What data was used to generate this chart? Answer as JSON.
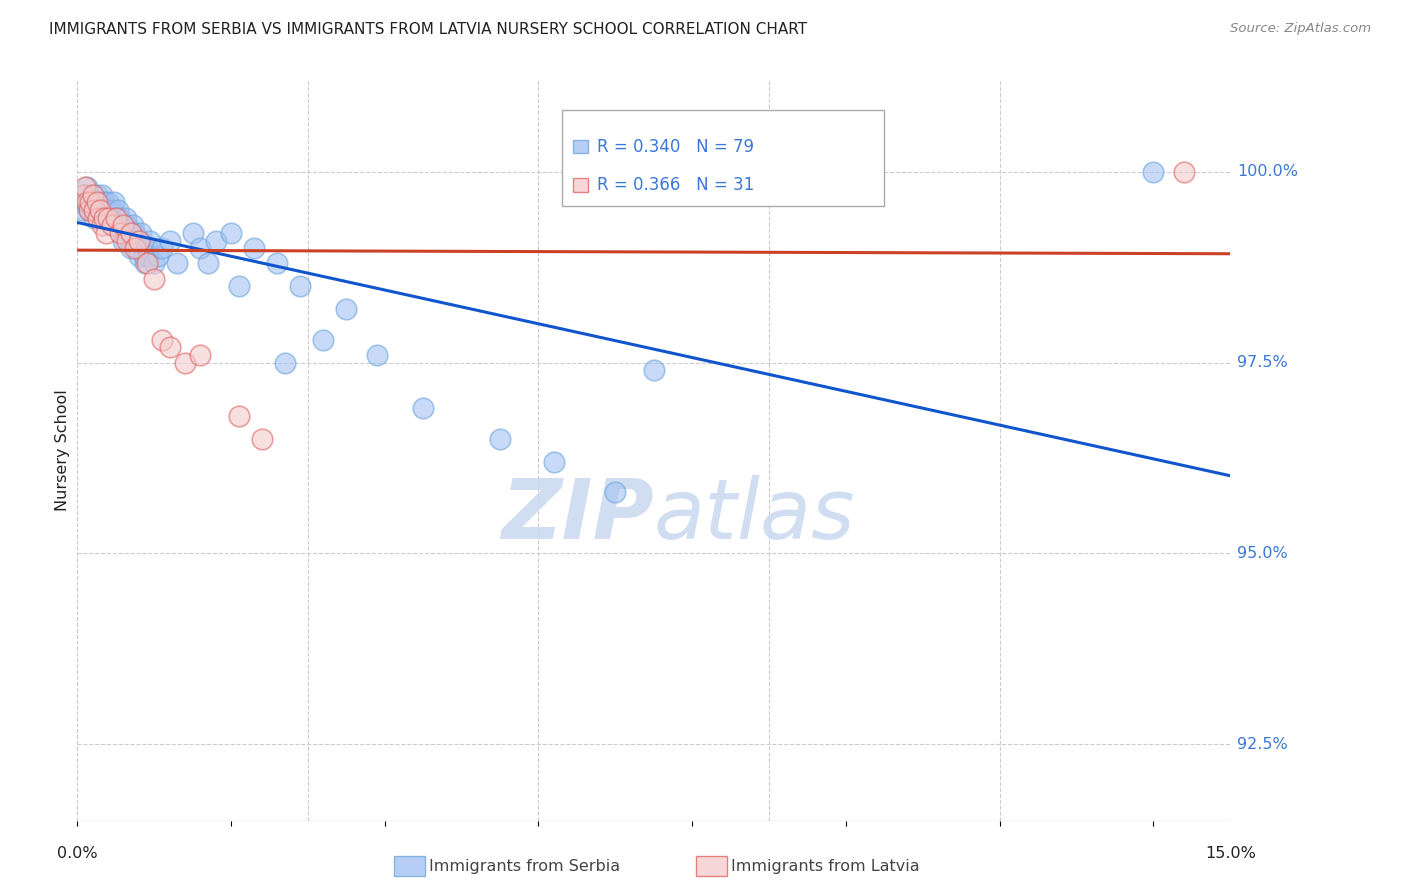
{
  "title": "IMMIGRANTS FROM SERBIA VS IMMIGRANTS FROM LATVIA NURSERY SCHOOL CORRELATION CHART",
  "source": "Source: ZipAtlas.com",
  "ylabel": "Nursery School",
  "xlim": [
    0.0,
    15.0
  ],
  "ylim": [
    91.5,
    101.2
  ],
  "ytick_positions": [
    92.5,
    95.0,
    97.5,
    100.0
  ],
  "ytick_labels": [
    "92.5%",
    "95.0%",
    "97.5%",
    "100.0%"
  ],
  "serbia_color_face": "#a4c2f4",
  "serbia_color_edge": "#6fa8dc",
  "latvia_color_face": "#f4cccc",
  "latvia_color_edge": "#e06666",
  "serbia_line_color": "#1155cc",
  "latvia_line_color": "#cc4125",
  "serbia_label": "Immigrants from Serbia",
  "latvia_label": "Immigrants from Latvia",
  "watermark_zip": "ZIP",
  "watermark_atlas": "atlas",
  "legend_R_serbia": "R = 0.340",
  "legend_N_serbia": "N = 79",
  "legend_R_latvia": "R = 0.366",
  "legend_N_latvia": "N = 31",
  "serbia_x": [
    0.05,
    0.07,
    0.08,
    0.1,
    0.12,
    0.13,
    0.15,
    0.17,
    0.18,
    0.2,
    0.22,
    0.23,
    0.25,
    0.27,
    0.28,
    0.3,
    0.3,
    0.32,
    0.33,
    0.35,
    0.37,
    0.38,
    0.4,
    0.42,
    0.43,
    0.45,
    0.47,
    0.48,
    0.5,
    0.52,
    0.53,
    0.55,
    0.57,
    0.58,
    0.6,
    0.62,
    0.63,
    0.65,
    0.67,
    0.68,
    0.7,
    0.72,
    0.73,
    0.75,
    0.77,
    0.78,
    0.8,
    0.82,
    0.83,
    0.85,
    0.87,
    0.88,
    0.9,
    0.92,
    0.95,
    1.0,
    1.05,
    1.1,
    1.2,
    1.3,
    1.5,
    1.6,
    1.7,
    1.8,
    2.0,
    2.1,
    2.3,
    2.6,
    2.7,
    2.9,
    3.2,
    3.5,
    3.9,
    4.5,
    5.5,
    6.2,
    7.0,
    7.5,
    14.0
  ],
  "serbia_y": [
    99.6,
    99.5,
    99.7,
    99.6,
    99.8,
    99.7,
    99.5,
    99.6,
    99.7,
    99.5,
    99.4,
    99.6,
    99.7,
    99.5,
    99.6,
    99.5,
    99.6,
    99.7,
    99.5,
    99.6,
    99.4,
    99.5,
    99.6,
    99.5,
    99.4,
    99.3,
    99.5,
    99.6,
    99.4,
    99.3,
    99.5,
    99.4,
    99.3,
    99.2,
    99.1,
    99.3,
    99.4,
    99.3,
    99.2,
    99.1,
    99.0,
    99.2,
    99.3,
    99.2,
    99.1,
    99.0,
    98.9,
    99.1,
    99.2,
    99.0,
    98.9,
    98.8,
    99.0,
    98.9,
    99.1,
    98.8,
    98.9,
    99.0,
    99.1,
    98.8,
    99.2,
    99.0,
    98.8,
    99.1,
    99.2,
    98.5,
    99.0,
    98.8,
    97.5,
    98.5,
    97.8,
    98.2,
    97.6,
    96.9,
    96.5,
    96.2,
    95.8,
    97.4,
    100.0
  ],
  "latvia_x": [
    0.07,
    0.1,
    0.12,
    0.15,
    0.17,
    0.2,
    0.22,
    0.25,
    0.27,
    0.3,
    0.32,
    0.35,
    0.37,
    0.4,
    0.45,
    0.5,
    0.55,
    0.6,
    0.65,
    0.7,
    0.75,
    0.8,
    0.9,
    1.0,
    1.1,
    1.2,
    1.4,
    1.6,
    2.1,
    2.4,
    14.4
  ],
  "latvia_y": [
    99.7,
    99.8,
    99.6,
    99.5,
    99.6,
    99.7,
    99.5,
    99.6,
    99.4,
    99.5,
    99.3,
    99.4,
    99.2,
    99.4,
    99.3,
    99.4,
    99.2,
    99.3,
    99.1,
    99.2,
    99.0,
    99.1,
    98.8,
    98.6,
    97.8,
    97.7,
    97.5,
    97.6,
    96.8,
    96.5,
    100.0
  ]
}
